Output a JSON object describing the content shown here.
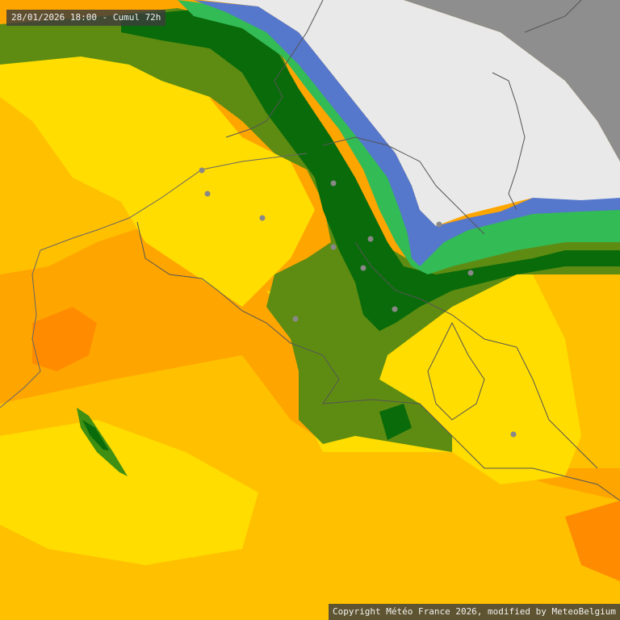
{
  "header": {
    "timestamp": "28/01/2026 18:00 - Cumul 72h"
  },
  "footer": {
    "copyright": "Copyright Météo France 2026, modified by MeteoBelgium"
  },
  "palette": {
    "no_data": "#8e8e8e",
    "ocean_nodata": "#e9e9ea",
    "blue": "#5577cc",
    "light_green": "#33bb55",
    "dark_green": "#0a6b0a",
    "mid_green": "#3f8f12",
    "olive_green": "#5e8c12",
    "yellow": "#ffdd00",
    "light_orange": "#ffc000",
    "orange": "#ffa500",
    "dark_orange": "#ff8c00",
    "border": "#555555",
    "coast": "#666666",
    "city_marker": "#888888"
  },
  "cities": [
    {
      "id": "city-1"
    },
    {
      "id": "city-2"
    },
    {
      "id": "city-3"
    },
    {
      "id": "city-4"
    },
    {
      "id": "city-5"
    },
    {
      "id": "city-6"
    },
    {
      "id": "city-7"
    },
    {
      "id": "city-8"
    },
    {
      "id": "city-9"
    },
    {
      "id": "city-10"
    },
    {
      "id": "city-11"
    },
    {
      "id": "city-12"
    }
  ]
}
